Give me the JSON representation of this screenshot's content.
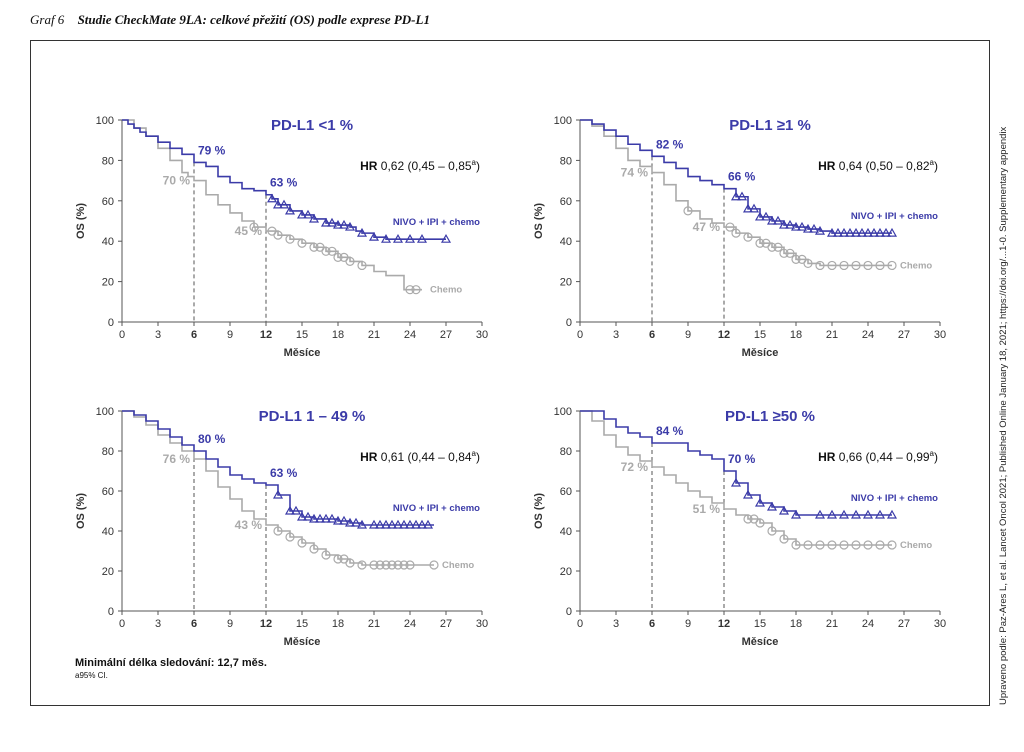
{
  "caption": {
    "label": "Graf 6",
    "title": "Studie CheckMate 9LA: celkové přežití (OS) podle exprese PD-L1"
  },
  "side_note": "Upraveno podle: Paz-Ares L, et al. Lancet Oncol 2021; Published Online January 18, 2021; https://doi.org/...1-0. Supplementary appendix",
  "footnote": {
    "main": "Minimální délka sledování: 12,7 měs.",
    "sub": "a95% CI."
  },
  "colors": {
    "nivo": "#3b3ba8",
    "chemo": "#aaaaaa",
    "axis": "#555555",
    "title": "#3b3ba8"
  },
  "chart_data": [
    {
      "type": "line",
      "title": "PD-L1 <1 %",
      "hr_label": "HR",
      "hr_value": "0,62 (0,45 – 0,85",
      "hr_sup": "a",
      "hr_close": ")",
      "xlabel": "Měsíce",
      "ylabel": "OS (%)",
      "xlim": [
        0,
        30
      ],
      "ylim": [
        0,
        100
      ],
      "xticks": [
        "0",
        "3",
        "6",
        "9",
        "12",
        "15",
        "18",
        "21",
        "24",
        "27",
        "30"
      ],
      "yticks": [
        "0",
        "20",
        "40",
        "60",
        "80",
        "100"
      ],
      "bold_xticks": [
        "6",
        "12"
      ],
      "series": [
        {
          "name": "NIVO + IPI + chemo",
          "x": [
            0,
            0.5,
            1,
            1.5,
            2,
            3,
            4,
            5,
            6,
            7,
            8,
            9,
            10,
            11,
            12,
            12.5,
            13,
            14,
            15,
            16,
            17,
            18,
            19,
            19.5,
            20,
            21,
            22,
            23,
            24,
            25,
            26,
            27
          ],
          "y": [
            100,
            98,
            96,
            94,
            92,
            89,
            86,
            83,
            79,
            77,
            72,
            69,
            66,
            65,
            63,
            61,
            58,
            55,
            53,
            51,
            49,
            48,
            47,
            45,
            44,
            42,
            41,
            41,
            41,
            41,
            41,
            41
          ]
        },
        {
          "name": "Chemo",
          "x": [
            0,
            1,
            2,
            3,
            4,
            5,
            5.5,
            6,
            7,
            8,
            9,
            10,
            11,
            12,
            13,
            14,
            15,
            16,
            17,
            18,
            19,
            20,
            21,
            22,
            23,
            23.5,
            24,
            25
          ],
          "y": [
            100,
            96,
            92,
            86,
            80,
            74,
            72,
            70,
            63,
            58,
            54,
            50,
            47,
            45,
            43,
            41,
            39,
            37,
            35,
            32,
            30,
            28,
            25,
            23,
            23,
            16,
            16,
            16
          ]
        }
      ],
      "annotations": [
        {
          "text": "79 %",
          "x": 6,
          "y": 79,
          "series": "NIVO + IPI + chemo"
        },
        {
          "text": "63 %",
          "x": 12,
          "y": 63,
          "series": "NIVO + IPI + chemo"
        },
        {
          "text": "70 %",
          "x": 6,
          "y": 70,
          "series": "Chemo"
        },
        {
          "text": "45 %",
          "x": 12,
          "y": 45,
          "series": "Chemo"
        }
      ],
      "nivo_censor": [
        12.5,
        13,
        13.5,
        14,
        15,
        15.5,
        16,
        17,
        17.5,
        18,
        18.5,
        19,
        20,
        21,
        22,
        23,
        24,
        25,
        27
      ],
      "chemo_censor": [
        11,
        12.5,
        13,
        14,
        15,
        16,
        16.5,
        17,
        17.5,
        18,
        18.5,
        19,
        20,
        24,
        24.5
      ]
    },
    {
      "type": "line",
      "title": "PD-L1 ≥1 %",
      "hr_label": "HR",
      "hr_value": "0,64 (0,50 – 0,82",
      "hr_sup": "a",
      "hr_close": ")",
      "xlabel": "Měsíce",
      "ylabel": "OS (%)",
      "xlim": [
        0,
        30
      ],
      "ylim": [
        0,
        100
      ],
      "xticks": [
        "0",
        "3",
        "6",
        "9",
        "12",
        "15",
        "18",
        "21",
        "24",
        "27",
        "30"
      ],
      "yticks": [
        "0",
        "20",
        "40",
        "60",
        "80",
        "100"
      ],
      "bold_xticks": [
        "6",
        "12"
      ],
      "series": [
        {
          "name": "NIVO + IPI + chemo",
          "x": [
            0,
            1,
            2,
            3,
            4,
            5,
            6,
            7,
            8,
            9,
            10,
            11,
            12,
            13,
            14,
            15,
            16,
            17,
            18,
            19,
            20,
            21,
            22,
            23,
            24,
            25,
            26
          ],
          "y": [
            100,
            98,
            95,
            92,
            88,
            85,
            82,
            79,
            76,
            72,
            70,
            68,
            66,
            62,
            56,
            52,
            50,
            48,
            47,
            46,
            45,
            44,
            44,
            44,
            44,
            44,
            44
          ]
        },
        {
          "name": "Chemo",
          "x": [
            0,
            1,
            2,
            3,
            4,
            5,
            6,
            7,
            8,
            9,
            10,
            11,
            12,
            13,
            14,
            15,
            16,
            17,
            18,
            19,
            20,
            21,
            22,
            23,
            24,
            25,
            26
          ],
          "y": [
            100,
            97,
            92,
            86,
            80,
            77,
            74,
            68,
            60,
            55,
            51,
            49,
            47,
            44,
            42,
            39,
            37,
            34,
            31,
            29,
            28,
            28,
            28,
            28,
            28,
            28,
            28
          ]
        }
      ],
      "annotations": [
        {
          "text": "82 %",
          "x": 6,
          "y": 82,
          "series": "NIVO + IPI + chemo"
        },
        {
          "text": "66 %",
          "x": 12,
          "y": 66,
          "series": "NIVO + IPI + chemo"
        },
        {
          "text": "74 %",
          "x": 6,
          "y": 74,
          "series": "Chemo"
        },
        {
          "text": "47 %",
          "x": 12,
          "y": 47,
          "series": "Chemo"
        }
      ],
      "nivo_censor": [
        13,
        13.5,
        14,
        14.5,
        15,
        15.5,
        16,
        16.5,
        17,
        17.5,
        18,
        18.5,
        19,
        19.5,
        20,
        21,
        21.5,
        22,
        22.5,
        23,
        23.5,
        24,
        24.5,
        25,
        25.5,
        26
      ],
      "chemo_censor": [
        9,
        12.5,
        13,
        14,
        15,
        15.5,
        16,
        16.5,
        17,
        17.5,
        18,
        18.5,
        19,
        20,
        21,
        22,
        23,
        24,
        25,
        26
      ]
    },
    {
      "type": "line",
      "title": "PD-L1 1 – 49 %",
      "hr_label": "HR",
      "hr_value": "0,61 (0,44 – 0,84",
      "hr_sup": "a",
      "hr_close": ")",
      "xlabel": "Měsíce",
      "ylabel": "OS (%)",
      "xlim": [
        0,
        30
      ],
      "ylim": [
        0,
        100
      ],
      "xticks": [
        "0",
        "3",
        "6",
        "9",
        "12",
        "15",
        "18",
        "21",
        "24",
        "27",
        "30"
      ],
      "yticks": [
        "0",
        "20",
        "40",
        "60",
        "80",
        "100"
      ],
      "bold_xticks": [
        "6",
        "12"
      ],
      "series": [
        {
          "name": "NIVO + IPI + chemo",
          "x": [
            0,
            1,
            2,
            3,
            4,
            5,
            6,
            7,
            8,
            9,
            10,
            11,
            12,
            13,
            14,
            15,
            16,
            17,
            18,
            19,
            20,
            21,
            22,
            23,
            24,
            25,
            26
          ],
          "y": [
            100,
            98,
            95,
            91,
            87,
            83,
            80,
            76,
            72,
            68,
            66,
            64,
            63,
            58,
            50,
            47,
            46,
            46,
            45,
            44,
            43,
            43,
            43,
            43,
            43,
            43,
            43
          ]
        },
        {
          "name": "Chemo",
          "x": [
            0,
            1,
            2,
            3,
            4,
            5,
            6,
            7,
            8,
            9,
            10,
            11,
            12,
            13,
            14,
            15,
            16,
            17,
            18,
            19,
            20,
            21,
            22,
            23,
            24,
            25,
            26
          ],
          "y": [
            100,
            97,
            93,
            88,
            84,
            80,
            76,
            70,
            62,
            56,
            50,
            46,
            43,
            40,
            37,
            34,
            31,
            28,
            26,
            24,
            23,
            23,
            23,
            23,
            23,
            23,
            23
          ]
        }
      ],
      "annotations": [
        {
          "text": "80 %",
          "x": 6,
          "y": 80,
          "series": "NIVO + IPI + chemo"
        },
        {
          "text": "63 %",
          "x": 12,
          "y": 63,
          "series": "NIVO + IPI + chemo"
        },
        {
          "text": "76 %",
          "x": 6,
          "y": 76,
          "series": "Chemo"
        },
        {
          "text": "43 %",
          "x": 12,
          "y": 43,
          "series": "Chemo"
        }
      ],
      "nivo_censor": [
        13,
        14,
        14.5,
        15,
        15.5,
        16,
        16.5,
        17,
        17.5,
        18,
        18.5,
        19,
        19.5,
        20,
        21,
        21.5,
        22,
        22.5,
        23,
        23.5,
        24,
        24.5,
        25,
        25.5
      ],
      "chemo_censor": [
        13,
        14,
        15,
        16,
        17,
        18,
        18.5,
        19,
        20,
        21,
        21.5,
        22,
        22.5,
        23,
        23.5,
        24,
        26
      ]
    },
    {
      "type": "line",
      "title": "PD-L1 ≥50 %",
      "hr_label": "HR",
      "hr_value": "0,66 (0,44 – 0,99",
      "hr_sup": "a",
      "hr_close": ")",
      "xlabel": "Měsíce",
      "ylabel": "OS (%)",
      "xlim": [
        0,
        30
      ],
      "ylim": [
        0,
        100
      ],
      "xticks": [
        "0",
        "3",
        "6",
        "9",
        "12",
        "15",
        "18",
        "21",
        "24",
        "27",
        "30"
      ],
      "yticks": [
        "0",
        "20",
        "40",
        "60",
        "80",
        "100"
      ],
      "bold_xticks": [
        "6",
        "12"
      ],
      "series": [
        {
          "name": "NIVO + IPI + chemo",
          "x": [
            0,
            1.5,
            2,
            3,
            4,
            5,
            6,
            7,
            8,
            9,
            10,
            11,
            12,
            13,
            14,
            15,
            16,
            17,
            18,
            19,
            20,
            21,
            22,
            23,
            24,
            25,
            26
          ],
          "y": [
            100,
            100,
            96,
            92,
            89,
            87,
            84,
            84,
            84,
            80,
            78,
            76,
            70,
            64,
            58,
            54,
            52,
            50,
            48,
            48,
            48,
            48,
            48,
            48,
            48,
            48,
            48
          ]
        },
        {
          "name": "Chemo",
          "x": [
            0,
            1,
            2,
            3,
            4,
            5,
            6,
            7,
            8,
            9,
            10,
            11,
            12,
            13,
            14,
            15,
            16,
            17,
            18,
            19,
            20,
            21,
            22,
            23,
            24,
            25,
            26
          ],
          "y": [
            100,
            95,
            88,
            82,
            78,
            75,
            72,
            68,
            64,
            60,
            57,
            54,
            51,
            48,
            46,
            44,
            40,
            36,
            33,
            33,
            33,
            33,
            33,
            33,
            33,
            33,
            33
          ]
        }
      ],
      "annotations": [
        {
          "text": "84 %",
          "x": 6,
          "y": 84,
          "series": "NIVO + IPI + chemo"
        },
        {
          "text": "70 %",
          "x": 12,
          "y": 70,
          "series": "NIVO + IPI + chemo"
        },
        {
          "text": "72 %",
          "x": 6,
          "y": 72,
          "series": "Chemo"
        },
        {
          "text": "51 %",
          "x": 12,
          "y": 51,
          "series": "Chemo"
        }
      ],
      "nivo_censor": [
        13,
        14,
        15,
        16,
        17,
        18,
        20,
        21,
        22,
        23,
        24,
        25,
        26
      ],
      "chemo_censor": [
        14,
        14.5,
        15,
        16,
        17,
        18,
        19,
        20,
        21,
        22,
        23,
        24,
        25,
        26
      ]
    }
  ]
}
